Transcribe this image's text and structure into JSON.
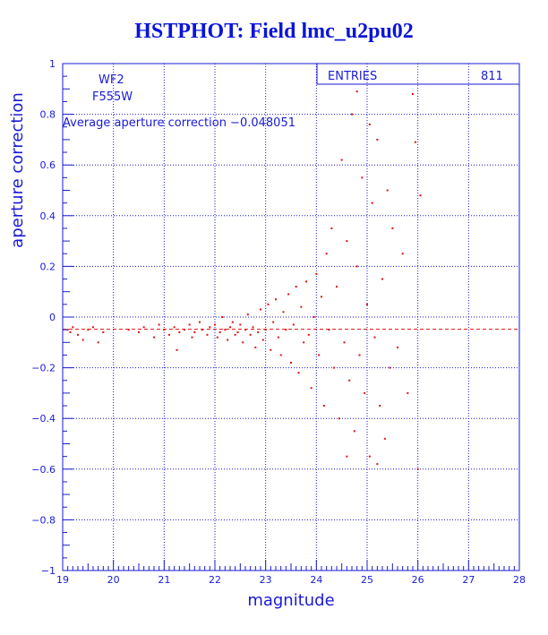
{
  "title": "HSTPHOT: Field lmc_u2pu02",
  "chart_data": {
    "type": "scatter",
    "xlabel": "magnitude",
    "ylabel": "aperture correction",
    "xlim": [
      19,
      28
    ],
    "ylim": [
      -1,
      1
    ],
    "xticks": [
      "19",
      "20",
      "21",
      "22",
      "23",
      "24",
      "25",
      "26",
      "27",
      "28"
    ],
    "yticks": [
      "1",
      "0.8",
      "0.6",
      "0.4",
      "0.2",
      "0",
      "−0.2",
      "−0.4",
      "−0.6",
      "−0.8",
      "−1"
    ],
    "grid": true,
    "info_box": {
      "label": "ENTRIES",
      "value": "811"
    },
    "annotations": {
      "chip": "WF2",
      "filter": "F555W",
      "average_text": "Average aperture correction −0.048051"
    },
    "average": -0.048051,
    "colors": {
      "axes": "#1a1ad6",
      "points": "#e01010",
      "title": "#0a14d8"
    },
    "points": [
      [
        19.1,
        -0.05
      ],
      [
        19.2,
        -0.04
      ],
      [
        19.3,
        -0.07
      ],
      [
        19.5,
        -0.05
      ],
      [
        19.6,
        -0.04
      ],
      [
        19.7,
        -0.1
      ],
      [
        19.8,
        -0.06
      ],
      [
        19.4,
        -0.09
      ],
      [
        19.15,
        -0.06
      ],
      [
        20.3,
        -0.05
      ],
      [
        20.5,
        -0.06
      ],
      [
        20.6,
        -0.04
      ],
      [
        20.8,
        -0.08
      ],
      [
        20.9,
        -0.03
      ],
      [
        21.0,
        -0.05
      ],
      [
        21.1,
        -0.07
      ],
      [
        21.2,
        -0.04
      ],
      [
        21.25,
        -0.13
      ],
      [
        21.3,
        -0.06
      ],
      [
        21.4,
        -0.05
      ],
      [
        21.5,
        -0.03
      ],
      [
        21.55,
        -0.08
      ],
      [
        21.6,
        -0.06
      ],
      [
        21.7,
        -0.02
      ],
      [
        21.75,
        -0.05
      ],
      [
        21.85,
        -0.07
      ],
      [
        21.9,
        -0.04
      ],
      [
        22.0,
        -0.03
      ],
      [
        22.05,
        -0.08
      ],
      [
        22.1,
        -0.06
      ],
      [
        22.15,
        0.0
      ],
      [
        22.2,
        -0.05
      ],
      [
        22.25,
        -0.09
      ],
      [
        22.3,
        -0.04
      ],
      [
        22.35,
        -0.02
      ],
      [
        22.4,
        -0.07
      ],
      [
        22.45,
        -0.06
      ],
      [
        22.5,
        -0.03
      ],
      [
        22.55,
        -0.1
      ],
      [
        22.6,
        -0.05
      ],
      [
        22.65,
        0.01
      ],
      [
        22.7,
        -0.07
      ],
      [
        22.75,
        -0.04
      ],
      [
        22.8,
        -0.12
      ],
      [
        22.85,
        -0.06
      ],
      [
        22.9,
        0.03
      ],
      [
        22.95,
        -0.09
      ],
      [
        23.0,
        -0.05
      ],
      [
        23.05,
        0.05
      ],
      [
        23.1,
        -0.13
      ],
      [
        23.15,
        -0.02
      ],
      [
        23.2,
        0.07
      ],
      [
        23.25,
        -0.08
      ],
      [
        23.3,
        -0.15
      ],
      [
        23.35,
        0.02
      ],
      [
        23.4,
        -0.05
      ],
      [
        23.45,
        0.09
      ],
      [
        23.5,
        -0.18
      ],
      [
        23.55,
        -0.03
      ],
      [
        23.6,
        0.12
      ],
      [
        23.65,
        -0.22
      ],
      [
        23.7,
        0.04
      ],
      [
        23.75,
        -0.1
      ],
      [
        23.8,
        0.14
      ],
      [
        23.85,
        -0.07
      ],
      [
        23.9,
        -0.28
      ],
      [
        23.95,
        0.0
      ],
      [
        24.0,
        0.17
      ],
      [
        24.05,
        -0.15
      ],
      [
        24.1,
        0.08
      ],
      [
        24.15,
        -0.35
      ],
      [
        24.2,
        0.25
      ],
      [
        24.25,
        -0.05
      ],
      [
        24.3,
        0.35
      ],
      [
        24.35,
        -0.2
      ],
      [
        24.4,
        0.12
      ],
      [
        24.45,
        -0.4
      ],
      [
        24.5,
        0.62
      ],
      [
        24.55,
        -0.1
      ],
      [
        24.6,
        0.3
      ],
      [
        24.65,
        -0.25
      ],
      [
        24.7,
        0.8
      ],
      [
        24.75,
        -0.45
      ],
      [
        24.8,
        0.2
      ],
      [
        24.85,
        -0.15
      ],
      [
        24.9,
        0.55
      ],
      [
        24.95,
        -0.3
      ],
      [
        25.0,
        0.05
      ],
      [
        25.05,
        -0.55
      ],
      [
        25.1,
        0.45
      ],
      [
        25.15,
        -0.08
      ],
      [
        25.2,
        0.7
      ],
      [
        25.25,
        -0.35
      ],
      [
        25.3,
        0.15
      ],
      [
        25.35,
        -0.48
      ],
      [
        25.4,
        0.5
      ],
      [
        25.45,
        -0.2
      ],
      [
        25.5,
        0.35
      ],
      [
        25.6,
        -0.12
      ],
      [
        25.7,
        0.25
      ],
      [
        25.8,
        -0.3
      ],
      [
        25.9,
        0.88
      ],
      [
        26.0,
        -0.6
      ],
      [
        26.05,
        0.48
      ],
      [
        25.95,
        0.69
      ],
      [
        24.8,
        0.89
      ],
      [
        25.05,
        0.76
      ],
      [
        24.6,
        -0.55
      ],
      [
        25.2,
        -0.58
      ]
    ]
  }
}
